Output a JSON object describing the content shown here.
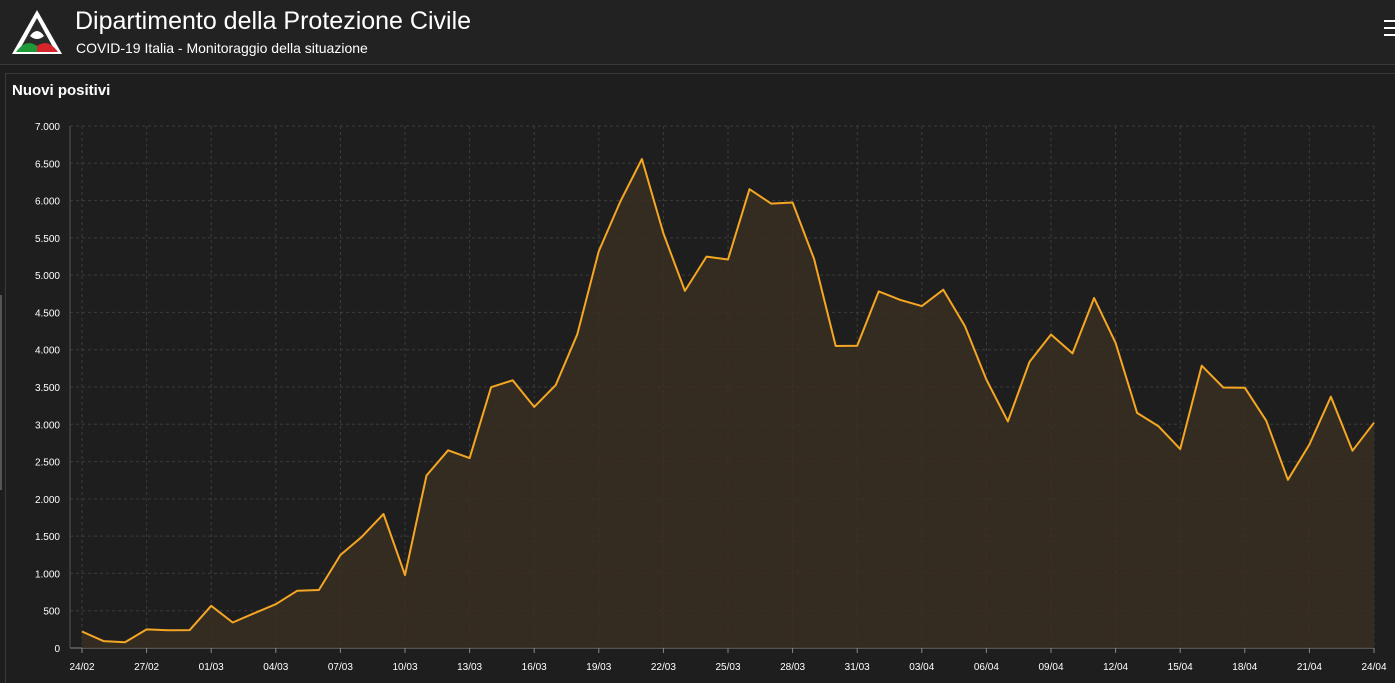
{
  "header": {
    "title": "Dipartimento della Protezione Civile",
    "subtitle": "COVID-19 Italia - Monitoraggio della situazione",
    "logo_icon": "protezione-civile-logo",
    "menu_icon": "hamburger-menu-icon"
  },
  "panel": {
    "title": "Nuovi positivi"
  },
  "colors": {
    "line": "#f5a623",
    "fill": "#3a2f22",
    "background": "#1e1e1e",
    "grid": "#3c3c3c"
  },
  "chart_data": {
    "type": "area",
    "title": "Nuovi positivi",
    "xlabel": "",
    "ylabel": "",
    "ylim": [
      0,
      7000
    ],
    "y_ticks": [
      0,
      500,
      1000,
      1500,
      2000,
      2500,
      3000,
      3500,
      4000,
      4500,
      5000,
      5500,
      6000,
      6500,
      7000
    ],
    "y_tick_labels": [
      "0",
      "500",
      "1.000",
      "1.500",
      "2.000",
      "2.500",
      "3.000",
      "3.500",
      "4.000",
      "4.500",
      "5.000",
      "5.500",
      "6.000",
      "6.500",
      "7.000"
    ],
    "x_tick_labels": [
      "24/02",
      "27/02",
      "01/03",
      "04/03",
      "07/03",
      "10/03",
      "13/03",
      "16/03",
      "19/03",
      "22/03",
      "25/03",
      "28/03",
      "31/03",
      "03/04",
      "06/04",
      "09/04",
      "12/04",
      "15/04",
      "18/04",
      "21/04",
      "24/04"
    ],
    "grid": true,
    "legend": false,
    "x": [
      "24/02",
      "25/02",
      "26/02",
      "27/02",
      "28/02",
      "29/02",
      "01/03",
      "02/03",
      "03/03",
      "04/03",
      "05/03",
      "06/03",
      "07/03",
      "08/03",
      "09/03",
      "10/03",
      "11/03",
      "12/03",
      "13/03",
      "14/03",
      "15/03",
      "16/03",
      "17/03",
      "18/03",
      "19/03",
      "20/03",
      "21/03",
      "22/03",
      "23/03",
      "24/03",
      "25/03",
      "26/03",
      "27/03",
      "28/03",
      "29/03",
      "30/03",
      "31/03",
      "01/04",
      "02/04",
      "03/04",
      "04/04",
      "05/04",
      "06/04",
      "07/04",
      "08/04",
      "09/04",
      "10/04",
      "11/04",
      "12/04",
      "13/04",
      "14/04",
      "15/04",
      "16/04",
      "17/04",
      "18/04",
      "19/04",
      "20/04",
      "21/04",
      "22/04",
      "23/04",
      "24/04"
    ],
    "series": [
      {
        "values": [
          221,
          93,
          78,
          250,
          238,
          240,
          566,
          342,
          466,
          587,
          769,
          778,
          1247,
          1492,
          1797,
          977,
          2313,
          2651,
          2547,
          3497,
          3590,
          3233,
          3526,
          4207,
          5322,
          5986,
          6557,
          5560,
          4789,
          5249,
          5210,
          6153,
          5959,
          5974,
          5217,
          4050,
          4053,
          4782,
          4668,
          4585,
          4805,
          4316,
          3599,
          3039,
          3836,
          4204,
          3951,
          4694,
          4092,
          3153,
          2972,
          2667,
          3786,
          3493,
          3491,
          3047,
          2256,
          2729,
          3370,
          2646,
          3021
        ]
      }
    ]
  }
}
